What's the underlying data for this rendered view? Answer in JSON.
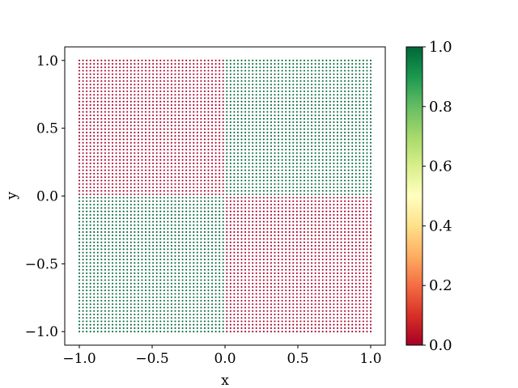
{
  "chart_data": {
    "type": "scatter",
    "title": "",
    "xlabel": "x",
    "ylabel": "y",
    "xlim": [
      -1.1,
      1.1
    ],
    "ylim": [
      -1.1,
      1.1
    ],
    "grid": false,
    "colormap": "RdYlGn",
    "color_scale": [
      0.0,
      1.0
    ],
    "colorbar_ticks": [
      "0.0",
      "0.2",
      "0.4",
      "0.6",
      "0.8",
      "1.0"
    ],
    "x_ticks": [
      "−1.0",
      "−0.5",
      "0.0",
      "0.5",
      "1.0"
    ],
    "y_ticks": [
      "−1.0",
      "−0.5",
      "0.0",
      "0.5",
      "1.0"
    ],
    "grid_points": {
      "x_range": [
        -1.0,
        1.0
      ],
      "y_range": [
        -1.0,
        1.0
      ],
      "points_per_axis": 80
    },
    "regions": [
      {
        "quadrant": "x<0, y>0",
        "value": 0
      },
      {
        "quadrant": "x>0, y>0",
        "value": 1
      },
      {
        "quadrant": "x<0, y<0",
        "value": 1
      },
      {
        "quadrant": "x>0, y<0",
        "value": 0
      }
    ],
    "colors": {
      "zero": "#a50026",
      "one": "#006837"
    }
  }
}
